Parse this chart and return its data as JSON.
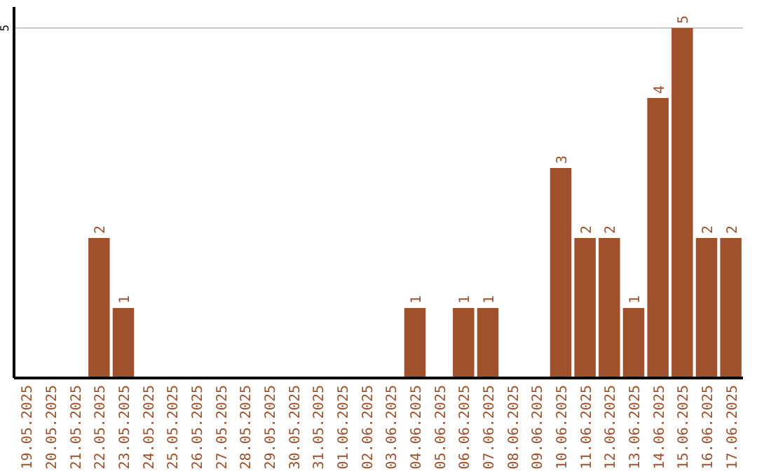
{
  "chart_data": {
    "type": "bar",
    "categories": [
      "19.05.2025",
      "20.05.2025",
      "21.05.2025",
      "22.05.2025",
      "23.05.2025",
      "24.05.2025",
      "25.05.2025",
      "26.05.2025",
      "27.05.2025",
      "28.05.2025",
      "29.05.2025",
      "30.05.2025",
      "31.05.2025",
      "01.06.2025",
      "02.06.2025",
      "03.06.2025",
      "04.06.2025",
      "05.06.2025",
      "06.06.2025",
      "07.06.2025",
      "08.06.2025",
      "09.06.2025",
      "10.06.2025",
      "11.06.2025",
      "12.06.2025",
      "13.06.2025",
      "14.06.2025",
      "15.06.2025",
      "16.06.2025",
      "17.06.2025"
    ],
    "values": [
      0,
      0,
      0,
      2,
      1,
      0,
      0,
      0,
      0,
      0,
      0,
      0,
      0,
      0,
      0,
      0,
      1,
      0,
      1,
      1,
      0,
      0,
      3,
      2,
      2,
      1,
      4,
      5,
      2,
      2
    ],
    "value_labels": [
      null,
      null,
      null,
      "2",
      "1",
      null,
      null,
      null,
      null,
      null,
      null,
      null,
      null,
      null,
      null,
      null,
      "1",
      null,
      "1",
      "1",
      null,
      null,
      "3",
      "2",
      "2",
      "1",
      "4",
      "5",
      "2",
      "2"
    ],
    "color": "#a0522d",
    "ylim": [
      0,
      5.3
    ],
    "yticks": [
      5
    ],
    "grid": "y"
  }
}
